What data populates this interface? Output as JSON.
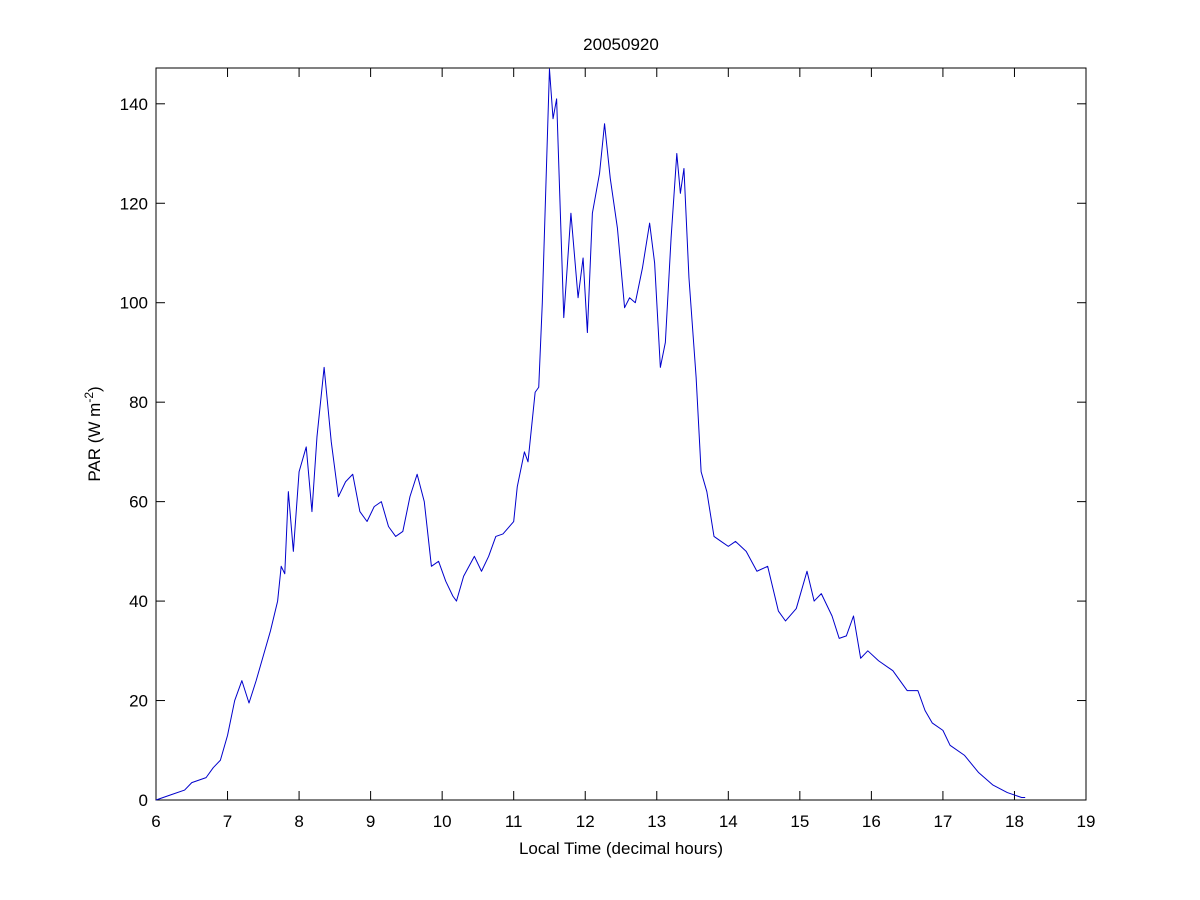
{
  "chart_data": {
    "type": "line",
    "title": "20050920",
    "x_label": "Local Time (decimal hours)",
    "y_label": [
      "PAR (W m",
      "-2",
      ")"
    ],
    "xlim": [
      6,
      19
    ],
    "ylim": [
      0,
      147.2
    ],
    "xticks": [
      6,
      7,
      8,
      9,
      10,
      11,
      12,
      13,
      14,
      15,
      16,
      17,
      18,
      19
    ],
    "yticks": [
      0,
      20,
      40,
      60,
      80,
      100,
      120,
      140
    ],
    "grid": false,
    "series": [
      {
        "color": "#0000cc",
        "x": [
          6.0,
          6.2,
          6.4,
          6.5,
          6.6,
          6.7,
          6.8,
          6.9,
          7.0,
          7.1,
          7.2,
          7.3,
          7.4,
          7.5,
          7.6,
          7.7,
          7.75,
          7.8,
          7.85,
          7.92,
          8.0,
          8.1,
          8.18,
          8.25,
          8.35,
          8.45,
          8.55,
          8.65,
          8.75,
          8.85,
          8.95,
          9.05,
          9.15,
          9.25,
          9.35,
          9.45,
          9.55,
          9.65,
          9.75,
          9.85,
          9.95,
          10.05,
          10.15,
          10.2,
          10.3,
          10.45,
          10.55,
          10.65,
          10.75,
          10.85,
          11.0,
          11.05,
          11.15,
          11.2,
          11.3,
          11.35,
          11.4,
          11.5,
          11.55,
          11.6,
          11.7,
          11.8,
          11.9,
          11.97,
          12.03,
          12.1,
          12.2,
          12.27,
          12.35,
          12.45,
          12.55,
          12.62,
          12.7,
          12.8,
          12.9,
          12.97,
          13.05,
          13.12,
          13.2,
          13.28,
          13.33,
          13.38,
          13.45,
          13.55,
          13.62,
          13.7,
          13.8,
          13.9,
          14.0,
          14.1,
          14.25,
          14.4,
          14.55,
          14.7,
          14.8,
          14.95,
          15.1,
          15.2,
          15.3,
          15.45,
          15.55,
          15.65,
          15.75,
          15.85,
          15.95,
          16.1,
          16.3,
          16.5,
          16.65,
          16.75,
          16.85,
          17.0,
          17.1,
          17.3,
          17.5,
          17.7,
          17.9,
          18.1,
          18.15
        ],
        "values": [
          0,
          1,
          2,
          3.5,
          4,
          4.5,
          6.5,
          8,
          13,
          20,
          24,
          19.5,
          24,
          29,
          34,
          40,
          47,
          45.5,
          62,
          50,
          66,
          71,
          58,
          73,
          87,
          72,
          61,
          64,
          65.5,
          58,
          56,
          59,
          60,
          55,
          53,
          54,
          61,
          65.5,
          60,
          47,
          48,
          44,
          41,
          40,
          45,
          49,
          46,
          49,
          53,
          53.5,
          56,
          63,
          70,
          68,
          82,
          83,
          100,
          147,
          137,
          141,
          97,
          118,
          101,
          109,
          94,
          118,
          126,
          136,
          125,
          115,
          99,
          101,
          100,
          107,
          116,
          108,
          87,
          92,
          113,
          130,
          122,
          127,
          105,
          85,
          66,
          62,
          53,
          52,
          51,
          52,
          50,
          46,
          47,
          38,
          36,
          38.5,
          46,
          40,
          41.5,
          37,
          32.5,
          33,
          37,
          28.5,
          30,
          28,
          26,
          22,
          22,
          18,
          15.5,
          14,
          11,
          9,
          5.5,
          3,
          1.5,
          0.5,
          0.5
        ]
      }
    ]
  }
}
